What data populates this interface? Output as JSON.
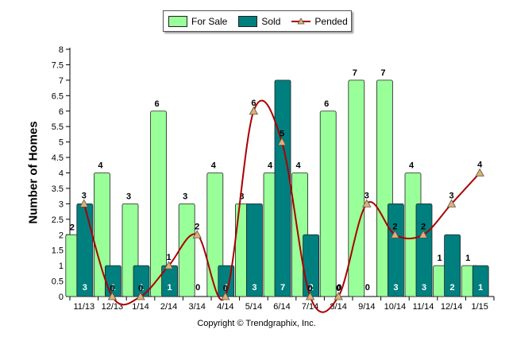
{
  "chart_data": {
    "type": "bar",
    "ylabel": "Number of Homes",
    "xlabel": "",
    "ylim": [
      0,
      8
    ],
    "ytick_step": 0.5,
    "categories": [
      "11/13",
      "12/13",
      "1/14",
      "2/14",
      "3/14",
      "4/14",
      "5/14",
      "6/14",
      "7/14",
      "8/14",
      "9/14",
      "10/14",
      "11/14",
      "12/14",
      "1/15"
    ],
    "series": [
      {
        "name": "For Sale",
        "type": "bar",
        "color": "#99ff99",
        "values": [
          2,
          4,
          3,
          6,
          3,
          4,
          3,
          4,
          4,
          6,
          7,
          7,
          4,
          1,
          1
        ]
      },
      {
        "name": "Sold",
        "type": "bar",
        "color": "#007f7f",
        "values": [
          3,
          1,
          1,
          1,
          0,
          1,
          3,
          7,
          2,
          0,
          0,
          3,
          3,
          2,
          1
        ]
      },
      {
        "name": "Pended",
        "type": "line",
        "color": "#aa0000",
        "marker_color": "#e0b070",
        "values": [
          3,
          0,
          0,
          1,
          2,
          0,
          6,
          5,
          0,
          0,
          3,
          2,
          2,
          3,
          4
        ]
      }
    ],
    "legend": "top-center",
    "grid": false
  },
  "footer": "Copyright © Trendgraphix, Inc."
}
